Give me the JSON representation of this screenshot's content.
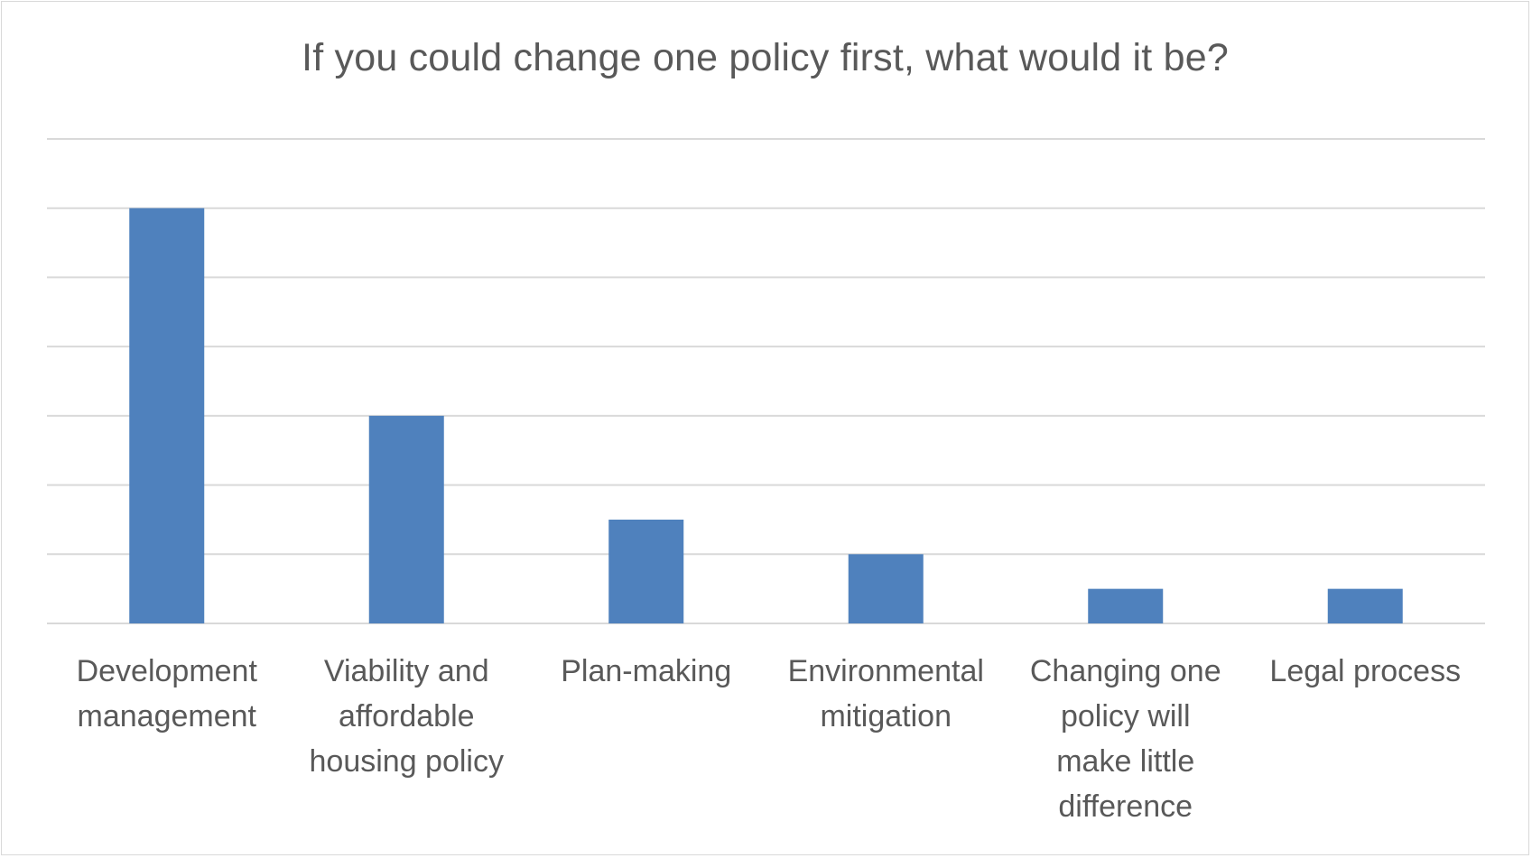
{
  "chart_data": {
    "type": "bar",
    "title": "If you could change one policy first, what would it be?",
    "categories": [
      [
        "Development",
        "management"
      ],
      [
        "Viability and",
        "affordable",
        "housing policy"
      ],
      [
        "Plan-making"
      ],
      [
        "Environmental",
        "mitigation"
      ],
      [
        "Changing one",
        "policy will",
        "make little",
        "difference"
      ],
      [
        "Legal process"
      ]
    ],
    "values": [
      12,
      6,
      3,
      2,
      1,
      1
    ],
    "ylim": [
      0,
      14
    ],
    "grid": true,
    "bar_color": "#4f81bd",
    "grid_color": "#d9d9d9"
  }
}
